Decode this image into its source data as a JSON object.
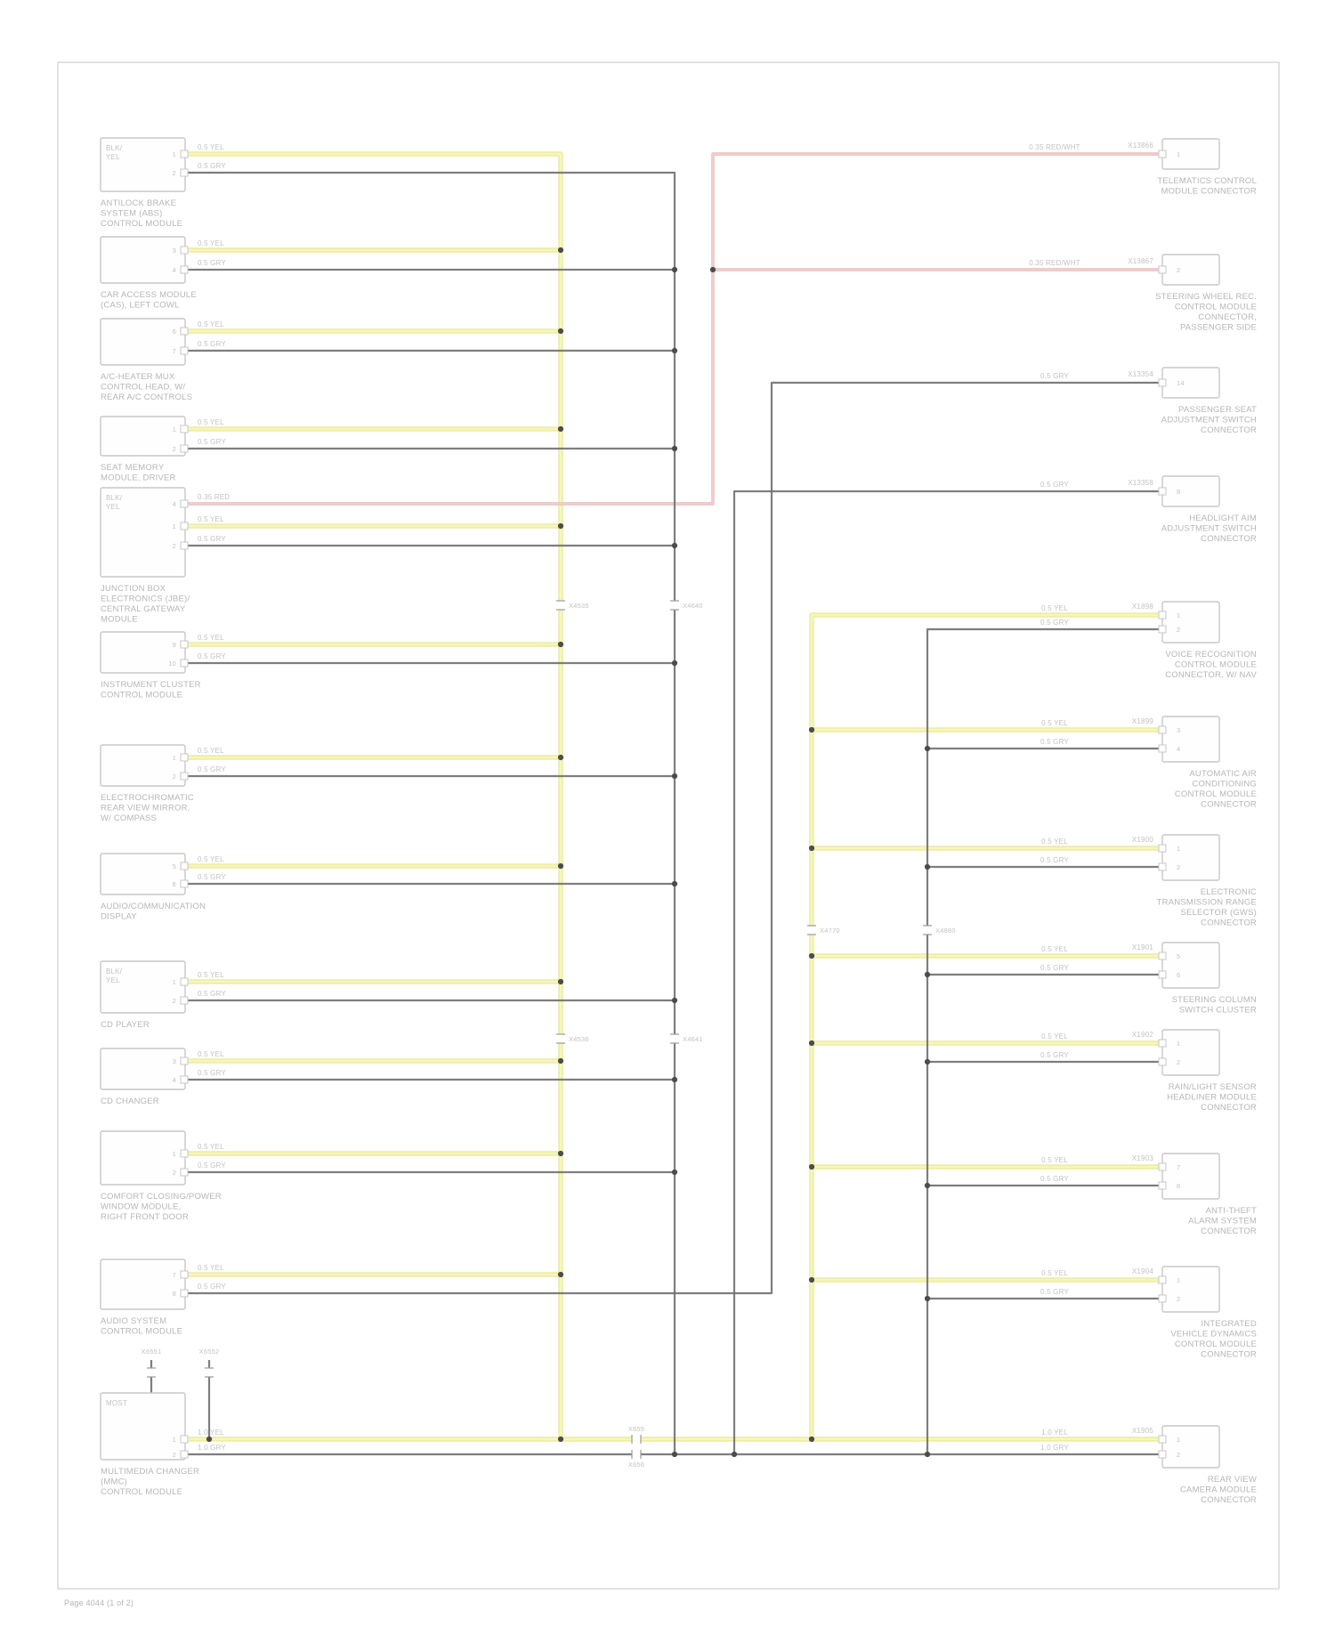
{
  "meta": {
    "footer": "Page 4044 (1 of 2)"
  },
  "colors": {
    "fiber": "#f6f6bc",
    "fiber_edge": "#e7e794",
    "wire_dark": "#707070",
    "wire_pink": "#e8b9b9",
    "wire_pink_core": "#f4d8d8",
    "box_border": "#c7c7c7",
    "box_fill": "#fefefe",
    "label": "#b6b6b6",
    "small_label": "#c2c2c2",
    "dot": "#4c4c4c",
    "border": "#cfcfcf",
    "tick": "#9a9a9a"
  },
  "left_modules": [
    {
      "inner_lines": [
        "BLK/",
        "YEL"
      ],
      "pins": [
        "1",
        "2"
      ],
      "wire_labels": [
        "0.5 YEL",
        "0.5 GRY"
      ],
      "label_lines": [
        "ANTILOCK BRAKE",
        "SYSTEM (ABS)",
        "CONTROL MODULE"
      ]
    },
    {
      "inner_lines": [],
      "pins": [
        "3",
        "4"
      ],
      "wire_labels": [
        "0.5 YEL",
        "0.5 GRY"
      ],
      "label_lines": [
        "CAR ACCESS MODULE",
        "(CAS), LEFT COWL"
      ]
    },
    {
      "inner_lines": [],
      "pins": [
        "6",
        "7"
      ],
      "wire_labels": [
        "0.5 YEL",
        "0.5 GRY"
      ],
      "label_lines": [
        "A/C-HEATER MUX",
        "CONTROL HEAD, W/",
        "REAR A/C CONTROLS"
      ]
    },
    {
      "inner_lines": [],
      "pins": [
        "1",
        "2"
      ],
      "wire_labels": [
        "0.5 YEL",
        "0.5 GRY"
      ],
      "label_lines": [
        "SEAT MEMORY",
        "MODULE, DRIVER"
      ]
    },
    {
      "inner_lines": [
        "BLK/",
        "YEL"
      ],
      "pins": [
        "4",
        "1",
        "2"
      ],
      "wire_labels": [
        "0.35 RED",
        "0.5 YEL",
        "0.5 GRY"
      ],
      "label_lines": [
        "JUNCTION BOX",
        "ELECTRONICS (JBE)/",
        "CENTRAL GATEWAY",
        "MODULE"
      ]
    },
    {
      "inner_lines": [],
      "pins": [
        "9",
        "10"
      ],
      "wire_labels": [
        "0.5 YEL",
        "0.5 GRY"
      ],
      "label_lines": [
        "INSTRUMENT CLUSTER",
        "CONTROL MODULE"
      ]
    },
    {
      "inner_lines": [],
      "pins": [
        "1",
        "2"
      ],
      "wire_labels": [
        "0.5 YEL",
        "0.5 GRY"
      ],
      "label_lines": [
        "ELECTROCHROMATIC",
        "REAR VIEW MIRROR,",
        "W/ COMPASS"
      ]
    },
    {
      "inner_lines": [],
      "pins": [
        "5",
        "6"
      ],
      "wire_labels": [
        "0.5 YEL",
        "0.5 GRY"
      ],
      "label_lines": [
        "AUDIO/COMMUNICATION",
        "DISPLAY"
      ]
    },
    {
      "inner_lines": [
        "BLK/",
        "YEL"
      ],
      "pins": [
        "1",
        "2"
      ],
      "wire_labels": [
        "0.5 YEL",
        "0.5 GRY"
      ],
      "label_lines": [
        "CD PLAYER"
      ]
    },
    {
      "inner_lines": [],
      "pins": [
        "3",
        "4"
      ],
      "wire_labels": [
        "0.5 YEL",
        "0.5 GRY"
      ],
      "label_lines": [
        "CD CHANGER"
      ]
    },
    {
      "inner_lines": [],
      "pins": [
        "1",
        "2"
      ],
      "wire_labels": [
        "0.5 YEL",
        "0.5 GRY"
      ],
      "label_lines": [
        "COMFORT CLOSING/POWER",
        "WINDOW MODULE,",
        "RIGHT FRONT DOOR"
      ]
    },
    {
      "inner_lines": [],
      "pins": [
        "7",
        "8"
      ],
      "wire_labels": [
        "0.5 YEL",
        "0.5 GRY"
      ],
      "label_lines": [
        "AUDIO SYSTEM",
        "CONTROL MODULE"
      ]
    },
    {
      "inner_lines": [
        "MOST"
      ],
      "pins": [
        "1",
        "2"
      ],
      "wire_labels": [
        "1.0 YEL",
        "1.0 GRY"
      ],
      "label_lines": [
        "MULTIMEDIA CHANGER",
        "(MMC)",
        "CONTROL MODULE"
      ]
    }
  ],
  "right_connectors": [
    {
      "code": "X13866",
      "pins": [
        "1"
      ],
      "wire_labels": [
        "0.35 RED/WHT"
      ],
      "label_lines": [
        "TELEMATICS CONTROL",
        "MODULE CONNECTOR"
      ]
    },
    {
      "code": "X13867",
      "pins": [
        "2"
      ],
      "wire_labels": [
        "0.35 RED/WHT"
      ],
      "label_lines": [
        "STEERING WHEEL REC.",
        "CONTROL MODULE",
        "CONNECTOR,",
        "PASSENGER SIDE"
      ]
    },
    {
      "code": "X13354",
      "pins": [
        "14"
      ],
      "wire_labels": [
        "0.5 GRY"
      ],
      "label_lines": [
        "PASSENGER SEAT",
        "ADJUSTMENT SWITCH",
        "CONNECTOR"
      ]
    },
    {
      "code": "X13358",
      "pins": [
        "8"
      ],
      "wire_labels": [
        "0.5 GRY"
      ],
      "label_lines": [
        "HEADLIGHT AIM",
        "ADJUSTMENT SWITCH",
        "CONNECTOR"
      ]
    },
    {
      "code": "X1898",
      "pins": [
        "1",
        "2"
      ],
      "wire_labels": [
        "0.5 YEL",
        "0.5 GRY"
      ],
      "label_lines": [
        "VOICE RECOGNITION",
        "CONTROL MODULE",
        "CONNECTOR, W/ NAV"
      ]
    },
    {
      "code": "X1899",
      "pins": [
        "3",
        "4"
      ],
      "wire_labels": [
        "0.5 YEL",
        "0.5 GRY"
      ],
      "label_lines": [
        "AUTOMATIC AIR",
        "CONDITIONING",
        "CONTROL MODULE",
        "CONNECTOR"
      ]
    },
    {
      "code": "X1900",
      "pins": [
        "1",
        "2"
      ],
      "wire_labels": [
        "0.5 YEL",
        "0.5 GRY"
      ],
      "label_lines": [
        "ELECTRONIC",
        "TRANSMISSION RANGE",
        "SELECTOR (GWS)",
        "CONNECTOR"
      ]
    },
    {
      "code": "X1901",
      "pins": [
        "5",
        "6"
      ],
      "wire_labels": [
        "0.5 YEL",
        "0.5 GRY"
      ],
      "label_lines": [
        "STEERING COLUMN",
        "SWITCH CLUSTER"
      ]
    },
    {
      "code": "X1902",
      "pins": [
        "1",
        "2"
      ],
      "wire_labels": [
        "0.5 YEL",
        "0.5 GRY"
      ],
      "label_lines": [
        "RAIN/LIGHT SENSOR",
        "HEADLINER MODULE",
        "CONNECTOR"
      ]
    },
    {
      "code": "X1903",
      "pins": [
        "7",
        "8"
      ],
      "wire_labels": [
        "0.5 YEL",
        "0.5 GRY"
      ],
      "label_lines": [
        "ANTI-THEFT",
        "ALARM SYSTEM",
        "CONNECTOR"
      ]
    },
    {
      "code": "X1904",
      "pins": [
        "1",
        "2"
      ],
      "wire_labels": [
        "0.5 YEL",
        "0.5 GRY"
      ],
      "label_lines": [
        "INTEGRATED",
        "VEHICLE DYNAMICS",
        "CONTROL MODULE",
        "CONNECTOR"
      ]
    },
    {
      "code": "X1905",
      "pins": [
        "1",
        "2"
      ],
      "wire_labels": [
        "1.0 YEL",
        "1.0 GRY"
      ],
      "label_lines": [
        "REAR VIEW",
        "CAMERA MODULE",
        "CONNECTOR"
      ]
    }
  ],
  "inline_connectors": [
    "X4535",
    "X4640",
    "X4536",
    "X4641",
    "X4770",
    "X4880",
    "X655",
    "X656"
  ],
  "stub_connectors": [
    {
      "code": "X6551"
    },
    {
      "code": "X6552"
    }
  ]
}
